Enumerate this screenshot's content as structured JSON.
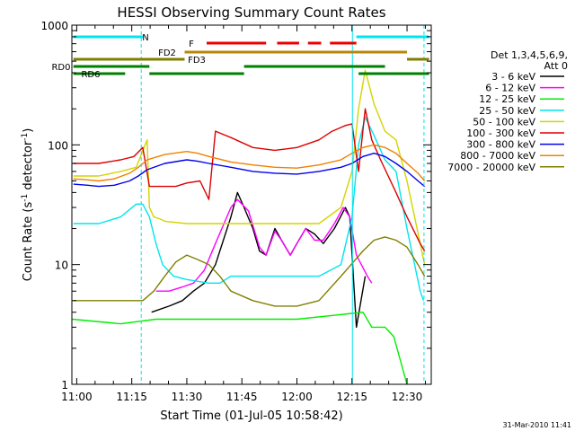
{
  "chart_data": {
    "type": "line",
    "title": "HESSI Observing Summary Count Rates",
    "xlabel": "Start Time (01-Jul-05 10:58:42)",
    "ylabel": "Count Rate (s",
    "ylabel_sup": "-1",
    "ylabel_mid": " detector",
    "ylabel_end": ")",
    "xlim": [
      10.978,
      12.61
    ],
    "ylim": [
      1,
      1000
    ],
    "yscale": "log",
    "grid": false,
    "x_ticks": [
      {
        "x": 11.0,
        "label": "11:00"
      },
      {
        "x": 11.25,
        "label": "11:15"
      },
      {
        "x": 11.5,
        "label": "11:30"
      },
      {
        "x": 11.75,
        "label": "11:45"
      },
      {
        "x": 12.0,
        "label": "12:00"
      },
      {
        "x": 12.25,
        "label": "12:15"
      },
      {
        "x": 12.5,
        "label": "12:30"
      }
    ],
    "y_ticks": [
      {
        "y": 1,
        "label": "1"
      },
      {
        "y": 10,
        "label": "10"
      },
      {
        "y": 100,
        "label": "100"
      },
      {
        "y": 1000,
        "label": "1000"
      }
    ],
    "legend": {
      "placement": "right",
      "header": [
        "Det 1,3,4,5,6,9,",
        "Att 0"
      ],
      "entries": [
        {
          "label": "3 - 6 keV",
          "color": "#000000"
        },
        {
          "label": "6 - 12 keV",
          "color": "#ff00ff"
        },
        {
          "label": "12 - 25 keV",
          "color": "#00ee00"
        },
        {
          "label": "25 - 50 keV",
          "color": "#00e5ee"
        },
        {
          "label": "50 - 100 keV",
          "color": "#d4d400"
        },
        {
          "label": "100 - 300 keV",
          "color": "#dd0000"
        },
        {
          "label": "300 - 800 keV",
          "color": "#0000ee"
        },
        {
          "label": "800 - 7000 keV",
          "color": "#f08000"
        },
        {
          "label": "7000 - 20000 keV",
          "color": "#808000"
        }
      ]
    },
    "flags": [
      {
        "label": "N",
        "color": "#00e5ee",
        "segments": [
          [
            10.985,
            11.3
          ],
          [
            12.27,
            12.6
          ]
        ]
      },
      {
        "label": "F",
        "color": "#ee0000",
        "segments": [
          [
            11.59,
            11.86
          ],
          [
            11.91,
            12.01
          ],
          [
            12.05,
            12.11
          ],
          [
            12.15,
            12.27
          ]
        ]
      },
      {
        "label": "FD2",
        "color": "#b8860b",
        "segments": [
          [
            11.49,
            12.5
          ]
        ]
      },
      {
        "label": "FD3",
        "color": "#808000",
        "segments": [
          [
            10.985,
            11.49
          ],
          [
            12.5,
            12.6
          ]
        ]
      },
      {
        "label": "RD0",
        "color": "#008000",
        "segments": [
          [
            10.985,
            11.33
          ],
          [
            11.76,
            12.4
          ]
        ]
      },
      {
        "label": "RD6",
        "color": "#008000",
        "segments": [
          [
            10.985,
            11.22
          ],
          [
            11.33,
            11.76
          ],
          [
            12.28,
            12.6
          ]
        ]
      }
    ],
    "night_markers": [
      {
        "x": 11.293,
        "style": "dashed"
      },
      {
        "x": 12.252,
        "style": "solid"
      },
      {
        "x": 12.577,
        "style": "dashed"
      }
    ],
    "series": [
      {
        "name": "3 - 6 keV",
        "color": "#000000",
        "x": [
          11.34,
          11.42,
          11.48,
          11.53,
          11.58,
          11.63,
          11.7,
          11.73,
          11.76,
          11.8,
          11.83,
          11.86,
          11.9,
          11.93,
          11.97,
          12.0,
          12.04,
          12.08,
          12.12,
          12.17,
          12.22,
          12.24,
          12.27,
          12.31
        ],
        "values": [
          4,
          4.5,
          5,
          6,
          7,
          10,
          25,
          40,
          30,
          20,
          13,
          12,
          20,
          16,
          12,
          15,
          20,
          18,
          15,
          20,
          30,
          25,
          3,
          8
        ]
      },
      {
        "name": "6 - 12 keV",
        "color": "#ff00ff",
        "x": [
          11.36,
          11.42,
          11.48,
          11.53,
          11.58,
          11.63,
          11.7,
          11.73,
          11.78,
          11.83,
          11.86,
          11.9,
          11.93,
          11.97,
          12.0,
          12.04,
          12.08,
          12.12,
          12.17,
          12.21,
          12.24,
          12.27,
          12.32,
          12.34
        ],
        "values": [
          6,
          6,
          6.5,
          7,
          9,
          15,
          30,
          35,
          28,
          14,
          12,
          19,
          16,
          12,
          15,
          20,
          16,
          16,
          22,
          30,
          25,
          12,
          8,
          7
        ]
      },
      {
        "name": "12 - 25 keV",
        "color": "#00ee00",
        "x": [
          10.98,
          11.2,
          11.36,
          11.65,
          12.0,
          12.3,
          12.34,
          12.4,
          12.44,
          12.5
        ],
        "values": [
          3.5,
          3.2,
          3.5,
          3.5,
          3.5,
          4,
          3,
          3,
          2.5,
          1
        ]
      },
      {
        "name": "25 - 50 keV",
        "color": "#00e5ee",
        "x": [
          10.985,
          11.1,
          11.2,
          11.27,
          11.3,
          11.33,
          11.36,
          11.39,
          11.44,
          11.5,
          11.6,
          11.65,
          11.7,
          11.8,
          11.9,
          12.0,
          12.1,
          12.2,
          12.25,
          12.28,
          12.31,
          12.35,
          12.4,
          12.45,
          12.5,
          12.56,
          12.575
        ],
        "values": [
          22,
          22,
          25,
          32,
          32,
          25,
          15,
          10,
          8,
          7.5,
          7,
          7,
          8,
          8,
          8,
          8,
          8,
          10,
          25,
          100,
          170,
          120,
          75,
          60,
          20,
          6,
          5
        ]
      },
      {
        "name": "50 - 100 keV",
        "color": "#d4d400",
        "x": [
          10.985,
          11.1,
          11.2,
          11.27,
          11.32,
          11.33,
          11.35,
          11.38,
          11.4,
          11.5,
          11.6,
          11.7,
          11.8,
          11.9,
          12.0,
          12.1,
          12.2,
          12.25,
          12.28,
          12.31,
          12.35,
          12.4,
          12.45,
          12.5,
          12.56,
          12.58
        ],
        "values": [
          55,
          55,
          60,
          65,
          110,
          30,
          25,
          24,
          23,
          22,
          22,
          22,
          22,
          22,
          22,
          22,
          30,
          60,
          200,
          420,
          220,
          130,
          110,
          50,
          15,
          10
        ]
      },
      {
        "name": "100 - 300 keV",
        "color": "#dd0000",
        "x": [
          10.985,
          11.1,
          11.2,
          11.26,
          11.3,
          11.33,
          11.38,
          11.45,
          11.5,
          11.56,
          11.6,
          11.63,
          11.7,
          11.8,
          11.9,
          12.0,
          12.1,
          12.16,
          12.22,
          12.25,
          12.28,
          12.31,
          12.34,
          12.38,
          12.45,
          12.5,
          12.56,
          12.58
        ],
        "values": [
          70,
          70,
          75,
          80,
          95,
          45,
          45,
          45,
          48,
          50,
          35,
          130,
          115,
          95,
          90,
          95,
          110,
          130,
          145,
          150,
          60,
          200,
          110,
          75,
          40,
          25,
          15,
          13
        ]
      },
      {
        "name": "300 - 800 keV",
        "color": "#0000ee",
        "x": [
          10.985,
          11.05,
          11.1,
          11.17,
          11.24,
          11.28,
          11.32,
          11.4,
          11.5,
          11.55,
          11.6,
          11.7,
          11.8,
          11.9,
          12.0,
          12.1,
          12.2,
          12.25,
          12.3,
          12.35,
          12.4,
          12.45,
          12.5,
          12.55,
          12.58
        ],
        "values": [
          47,
          46,
          45,
          46,
          50,
          55,
          62,
          70,
          75,
          73,
          70,
          65,
          60,
          58,
          57,
          60,
          65,
          70,
          80,
          85,
          80,
          70,
          60,
          50,
          45
        ]
      },
      {
        "name": "800 - 7000 keV",
        "color": "#f08000",
        "x": [
          10.985,
          11.05,
          11.1,
          11.17,
          11.24,
          11.28,
          11.32,
          11.4,
          11.5,
          11.55,
          11.6,
          11.7,
          11.8,
          11.9,
          12.0,
          12.1,
          12.2,
          12.25,
          12.3,
          12.35,
          12.4,
          12.45,
          12.5,
          12.55,
          12.58
        ],
        "values": [
          52,
          51,
          50,
          52,
          58,
          65,
          75,
          83,
          88,
          85,
          80,
          72,
          68,
          65,
          64,
          68,
          75,
          85,
          95,
          100,
          95,
          85,
          70,
          58,
          50
        ]
      },
      {
        "name": "7000 - 20000 keV",
        "color": "#808000",
        "x": [
          10.985,
          11.1,
          11.2,
          11.3,
          11.35,
          11.4,
          11.45,
          11.5,
          11.55,
          11.6,
          11.65,
          11.7,
          11.8,
          11.9,
          12.0,
          12.1,
          12.2,
          12.3,
          12.35,
          12.4,
          12.45,
          12.5,
          12.55,
          12.58
        ],
        "values": [
          5,
          5,
          5,
          5,
          6,
          8,
          10.5,
          12,
          11,
          10,
          8,
          6,
          5,
          4.5,
          4.5,
          5,
          8,
          13,
          16,
          17,
          16,
          14,
          10,
          8
        ]
      }
    ]
  },
  "footer": {
    "timestamp": "31-Mar-2010 11:41"
  }
}
